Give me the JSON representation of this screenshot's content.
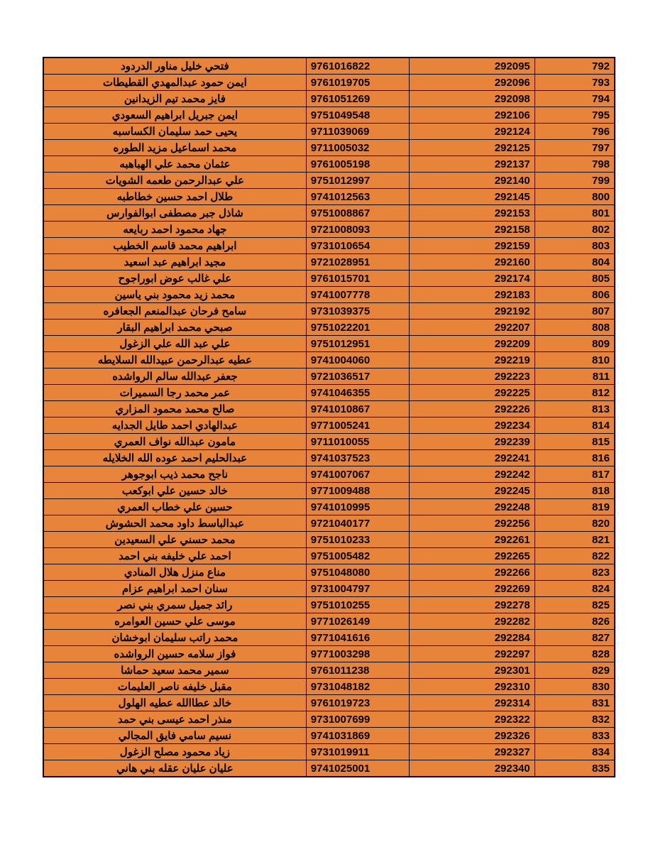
{
  "table": {
    "type": "table",
    "background_color": "#e8833a",
    "border_color": "#000000",
    "text_color": "#000000",
    "font_weight": "bold",
    "font_size_pt": 11,
    "columns": [
      {
        "key": "name",
        "align": "center",
        "width_pct": 46
      },
      {
        "key": "id",
        "align": "left",
        "width_pct": 18
      },
      {
        "key": "code",
        "align": "right",
        "width_pct": 22
      },
      {
        "key": "seq",
        "align": "right",
        "width_pct": 14
      }
    ],
    "rows": [
      {
        "name": "فتحي خليل مناور الدردود",
        "id": "9761016822",
        "code": "292095",
        "seq": "792"
      },
      {
        "name": "ايمن حمود عبدالمهدي القطيطات",
        "id": "9761019705",
        "code": "292096",
        "seq": "793"
      },
      {
        "name": "فايز محمد تيم الزيدانين",
        "id": "9761051269",
        "code": "292098",
        "seq": "794"
      },
      {
        "name": "ايمن جبريل ابراهيم السعودي",
        "id": "9751049548",
        "code": "292106",
        "seq": "795"
      },
      {
        "name": "يحيى حمد سليمان الكساسبه",
        "id": "9711039069",
        "code": "292124",
        "seq": "796"
      },
      {
        "name": "محمد اسماعيل مزيد الطوره",
        "id": "9711005032",
        "code": "292125",
        "seq": "797"
      },
      {
        "name": "عثمان محمد علي الهباهبه",
        "id": "9761005198",
        "code": "292137",
        "seq": "798"
      },
      {
        "name": "علي عبدالرحمن طعمه الشويات",
        "id": "9751012997",
        "code": "292140",
        "seq": "799"
      },
      {
        "name": "طلال احمد حسين خطاطبه",
        "id": "9741012563",
        "code": "292145",
        "seq": "800"
      },
      {
        "name": "شاذل جبر مصطفى ابوالفوارس",
        "id": "9751008867",
        "code": "292153",
        "seq": "801"
      },
      {
        "name": "جهاد محمود احمد ربايعه",
        "id": "9721008093",
        "code": "292158",
        "seq": "802"
      },
      {
        "name": "ابراهيم محمد قاسم الخطيب",
        "id": "9731010654",
        "code": "292159",
        "seq": "803"
      },
      {
        "name": "مجيد ابراهيم عبد اسعيد",
        "id": "9721028951",
        "code": "292160",
        "seq": "804"
      },
      {
        "name": "علي غالب عوض ابوراجوح",
        "id": "9761015701",
        "code": "292174",
        "seq": "805"
      },
      {
        "name": "محمد زيد محمود بني ياسين",
        "id": "9741007778",
        "code": "292183",
        "seq": "806"
      },
      {
        "name": "سامح فرحان عبدالمنعم الجعافره",
        "id": "9731039375",
        "code": "292192",
        "seq": "807"
      },
      {
        "name": "صبحي محمد ابراهيم البقار",
        "id": "9751022201",
        "code": "292207",
        "seq": "808"
      },
      {
        "name": "علي عبد الله علي الزغول",
        "id": "9751012951",
        "code": "292209",
        "seq": "809"
      },
      {
        "name": "عطيه عبدالرحمن عبيدالله السلايطه",
        "id": "9741004060",
        "code": "292219",
        "seq": "810"
      },
      {
        "name": "جعفر عبدالله سالم الرواشده",
        "id": "9721036517",
        "code": "292223",
        "seq": "811"
      },
      {
        "name": "عمر محمد رجا السميرات",
        "id": "9741046355",
        "code": "292225",
        "seq": "812"
      },
      {
        "name": "صالح محمد محمود المزاري",
        "id": "9741010867",
        "code": "292226",
        "seq": "813"
      },
      {
        "name": "عبدالهادي احمد طايل الجدايه",
        "id": "9771005241",
        "code": "292234",
        "seq": "814"
      },
      {
        "name": "مامون عبدالله نواف العمري",
        "id": "9711010055",
        "code": "292239",
        "seq": "815"
      },
      {
        "name": "عبدالحليم احمد عوده الله الخلايله",
        "id": "9741037523",
        "code": "292241",
        "seq": "816"
      },
      {
        "name": "ناجح محمد ذيب ابوجوهر",
        "id": "9741007067",
        "code": "292242",
        "seq": "817"
      },
      {
        "name": "خالد حسين علي ابوكعب",
        "id": "9771009488",
        "code": "292245",
        "seq": "818"
      },
      {
        "name": "حسين علي خطاب العمري",
        "id": "9741010995",
        "code": "292248",
        "seq": "819"
      },
      {
        "name": "عبدالباسط داود محمد الحشوش",
        "id": "9721040177",
        "code": "292256",
        "seq": "820"
      },
      {
        "name": "محمد حسني علي السعيدين",
        "id": "9751010233",
        "code": "292261",
        "seq": "821"
      },
      {
        "name": "احمد علي خليفه بني احمد",
        "id": "9751005482",
        "code": "292265",
        "seq": "822"
      },
      {
        "name": "مناع منزل هلال المنادي",
        "id": "9751048080",
        "code": "292266",
        "seq": "823"
      },
      {
        "name": "سنان احمد ابراهيم عزام",
        "id": "9731004797",
        "code": "292269",
        "seq": "824"
      },
      {
        "name": "رائد جميل سمري بني نصر",
        "id": "9751010255",
        "code": "292278",
        "seq": "825"
      },
      {
        "name": "موسى علي حسين العوامره",
        "id": "9771026149",
        "code": "292282",
        "seq": "826"
      },
      {
        "name": "محمد راتب سليمان ابوخشان",
        "id": "9771041616",
        "code": "292284",
        "seq": "827"
      },
      {
        "name": "فواز سلامه حسين الرواشده",
        "id": "9771003298",
        "code": "292297",
        "seq": "828"
      },
      {
        "name": "سمير محمد سعيد حماشا",
        "id": "9761011238",
        "code": "292301",
        "seq": "829"
      },
      {
        "name": "مقبل خليفه ناصر العليمات",
        "id": "9731048182",
        "code": "292310",
        "seq": "830"
      },
      {
        "name": "خالد عطاالله عطيه الهلول",
        "id": "9761019723",
        "code": "292314",
        "seq": "831"
      },
      {
        "name": "منذر احمد عيسى بني حمد",
        "id": "9731007699",
        "code": "292322",
        "seq": "832"
      },
      {
        "name": "نسيم سامي فايق المجالي",
        "id": "9741031869",
        "code": "292326",
        "seq": "833"
      },
      {
        "name": "زياد محمود مصلح الزغول",
        "id": "9731019911",
        "code": "292327",
        "seq": "834"
      },
      {
        "name": "عليان عليان عقله بني هاني",
        "id": "9741025001",
        "code": "292340",
        "seq": "835"
      }
    ]
  }
}
